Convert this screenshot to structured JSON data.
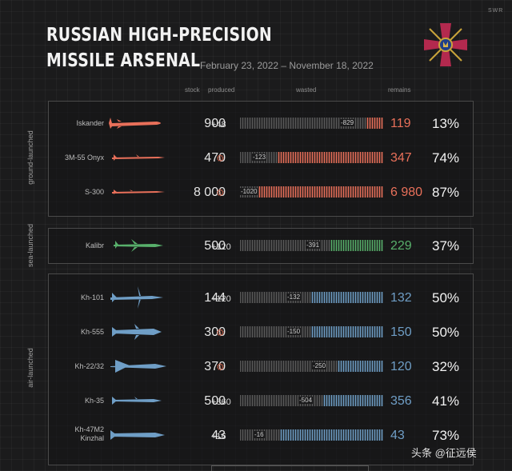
{
  "header": {
    "title_line1": "RUSSIAN HIGH-PRECISION",
    "title_line2": "MISSILE ARSENAL",
    "date_range": "February 23, 2022 – November 18, 2022",
    "brand": "SWR"
  },
  "columns": {
    "stock": "stock",
    "produced": "produced",
    "wasted": "wasted",
    "remains": "remains"
  },
  "groups": [
    {
      "label": "ground-launched",
      "color": "#e9705a"
    },
    {
      "label": "sea-launched",
      "color": "#58b06b"
    },
    {
      "label": "air-launched",
      "color": "#6f9ec6"
    }
  ],
  "produced_icon": "gear-icon",
  "watermark": "头条 @征远侯",
  "chart_data": {
    "type": "table",
    "title": "RUSSIAN HIGH-PRECISION MISSILE ARSENAL",
    "subtitle": "February 23, 2022 – November 18, 2022",
    "columns": [
      "stock",
      "produced",
      "wasted",
      "remains"
    ],
    "rows": [
      {
        "group": "ground-launched",
        "name": "Iskander",
        "stock": "900",
        "produced": "+48",
        "wasted": "-829",
        "remains": "119",
        "remains_pct": "13%",
        "stock_value": 900,
        "produced_value": 48,
        "wasted_value": 829,
        "remains_value": 119
      },
      {
        "group": "ground-launched",
        "name": "3M-55 Onyx",
        "stock": "470",
        "produced": "",
        "wasted": "-123",
        "remains": "347",
        "remains_pct": "74%",
        "stock_value": 470,
        "produced_value": 0,
        "wasted_value": 123,
        "remains_value": 347
      },
      {
        "group": "ground-launched",
        "name": "S-300",
        "stock": "8 000",
        "produced": "",
        "wasted": "-1020",
        "remains": "6 980",
        "remains_pct": "87%",
        "stock_value": 8000,
        "produced_value": 0,
        "wasted_value": 1020,
        "remains_value": 6980
      },
      {
        "group": "sea-launched",
        "name": "Kalibr",
        "stock": "500",
        "produced": "+120",
        "wasted": "-391",
        "remains": "229",
        "remains_pct": "37%",
        "stock_value": 500,
        "produced_value": 120,
        "wasted_value": 391,
        "remains_value": 229
      },
      {
        "group": "air-launched",
        "name": "Kh-101",
        "stock": "144",
        "produced": "+120",
        "wasted": "-132",
        "remains": "132",
        "remains_pct": "50%",
        "stock_value": 144,
        "produced_value": 120,
        "wasted_value": 132,
        "remains_value": 132
      },
      {
        "group": "air-launched",
        "name": "Kh-555",
        "stock": "300",
        "produced": "",
        "wasted": "-150",
        "remains": "150",
        "remains_pct": "50%",
        "stock_value": 300,
        "produced_value": 0,
        "wasted_value": 150,
        "remains_value": 150
      },
      {
        "group": "air-launched",
        "name": "Kh-22/32",
        "stock": "370",
        "produced": "",
        "wasted": "-250",
        "remains": "120",
        "remains_pct": "32%",
        "stock_value": 370,
        "produced_value": 0,
        "wasted_value": 250,
        "remains_value": 120
      },
      {
        "group": "air-launched",
        "name": "Kh-35",
        "stock": "500",
        "produced": "+360",
        "wasted": "-504",
        "remains": "356",
        "remains_pct": "41%",
        "stock_value": 500,
        "produced_value": 360,
        "wasted_value": 504,
        "remains_value": 356
      },
      {
        "group": "air-launched",
        "name": "Kh-47M2 Kinzhal",
        "name_lines": [
          "Kh-47M2",
          "Kinzhal"
        ],
        "stock": "43",
        "produced": "+16",
        "wasted": "-16",
        "remains": "43",
        "remains_pct": "73%",
        "stock_value": 43,
        "produced_value": 16,
        "wasted_value": 16,
        "remains_value": 43
      }
    ]
  }
}
